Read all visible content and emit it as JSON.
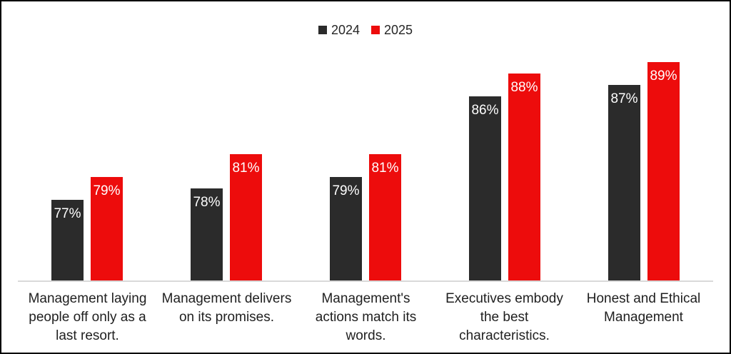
{
  "colors": {
    "frame_border": "#000000",
    "background": "#ffffff",
    "axis_line": "#d9d9d9",
    "category_text": "#1f1f1f",
    "legend_text": "#262626",
    "data_label_text": "#ffffff",
    "series_2024": "#2b2b2b",
    "series_2025": "#ed0c0c"
  },
  "chart_data": {
    "type": "bar",
    "title": "",
    "xlabel": "",
    "ylabel": "",
    "categories": [
      "Management laying\npeople off only as a\nlast resort.",
      "Management delivers\non its promises.",
      "Management's\nactions match its\nwords.",
      "Executives embody\nthe best\ncharacteristics.",
      "Honest and Ethical\nManagement"
    ],
    "series": [
      {
        "name": "2024",
        "color": "#2b2b2b",
        "values": [
          77,
          78,
          79,
          86,
          87
        ],
        "labels": [
          "77%",
          "78%",
          "79%",
          "86%",
          "87%"
        ]
      },
      {
        "name": "2025",
        "color": "#ed0c0c",
        "values": [
          79,
          81,
          81,
          88,
          89
        ],
        "labels": [
          "79%",
          "81%",
          "81%",
          "88%",
          "89%"
        ]
      }
    ],
    "ylim": [
      70,
      90
    ],
    "grid": false,
    "legend_position": "top",
    "data_labels": "inside-end"
  }
}
